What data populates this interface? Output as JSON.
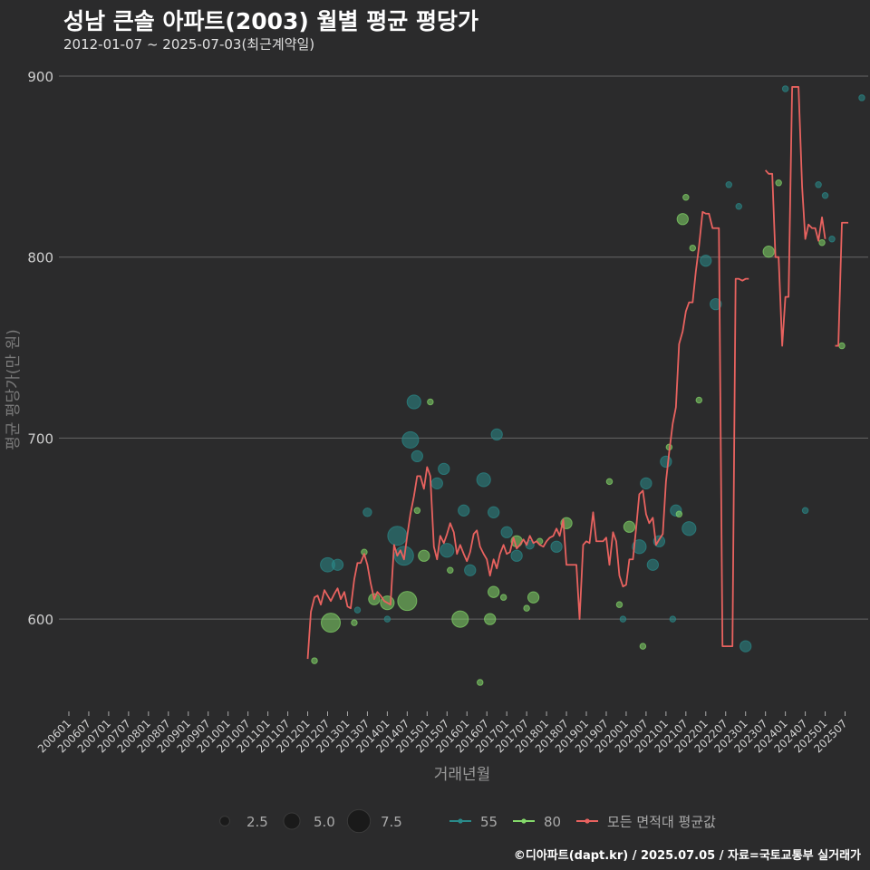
{
  "chart_data": {
    "type": "scatter",
    "title": "성남 큰솔 아파트(2003) 월별 평균 평당가",
    "subtitle": "2012-01-07 ~ 2025-07-03(최근계약일)",
    "xlabel": "거래년월",
    "ylabel": "평균 평당가(만 원)",
    "ylim": [
      549,
      912
    ],
    "yticks": [
      600,
      700,
      800,
      900
    ],
    "x_ticks": [
      "200601",
      "200607",
      "200701",
      "200707",
      "200801",
      "200807",
      "200901",
      "200907",
      "201001",
      "201007",
      "201101",
      "201107",
      "201201",
      "201207",
      "201301",
      "201307",
      "201401",
      "201407",
      "201501",
      "201507",
      "201601",
      "201607",
      "201701",
      "201707",
      "201801",
      "201807",
      "201901",
      "201907",
      "202001",
      "202007",
      "202101",
      "202107",
      "202201",
      "202207",
      "202301",
      "202307",
      "202401",
      "202407",
      "202501",
      "202507"
    ],
    "size_legend": [
      {
        "label": "2.5",
        "value": 2.5
      },
      {
        "label": "5.0",
        "value": 5.0
      },
      {
        "label": "7.5",
        "value": 7.5
      }
    ],
    "series_legend": [
      {
        "label": "55",
        "color": "#2a8a8a",
        "kind": "dot"
      },
      {
        "label": "80",
        "color": "#84d96a",
        "kind": "dot"
      },
      {
        "label": "모든 면적대 평균값",
        "color": "#e8625f",
        "kind": "line"
      }
    ],
    "series": [
      {
        "name": "55",
        "color": "#2a8a8a",
        "points": [
          [
            2012.5,
            630,
            4.2
          ],
          [
            2012.75,
            630,
            3
          ],
          [
            2013.5,
            659,
            2
          ],
          [
            2013.25,
            605,
            1
          ],
          [
            2014.0,
            600,
            1
          ],
          [
            2014.25,
            646,
            6
          ],
          [
            2014.42,
            635,
            6
          ],
          [
            2014.58,
            699,
            5
          ],
          [
            2014.67,
            720,
            4
          ],
          [
            2014.75,
            690,
            3
          ],
          [
            2015.25,
            675,
            3
          ],
          [
            2015.42,
            683,
            3
          ],
          [
            2015.5,
            638,
            4
          ],
          [
            2015.92,
            660,
            3
          ],
          [
            2016.08,
            627,
            3
          ],
          [
            2016.42,
            677,
            4
          ],
          [
            2016.67,
            659,
            3
          ],
          [
            2016.75,
            702,
            3
          ],
          [
            2017.0,
            648,
            3
          ],
          [
            2017.25,
            635,
            3
          ],
          [
            2017.58,
            641,
            2
          ],
          [
            2018.25,
            640,
            3
          ],
          [
            2019.92,
            600,
            1
          ],
          [
            2020.33,
            640,
            4
          ],
          [
            2020.5,
            675,
            3
          ],
          [
            2020.67,
            630,
            3
          ],
          [
            2020.83,
            643,
            3
          ],
          [
            2021.0,
            687,
            3
          ],
          [
            2021.17,
            600,
            1
          ],
          [
            2021.25,
            660,
            3
          ],
          [
            2021.58,
            650,
            4
          ],
          [
            2022.0,
            798,
            3
          ],
          [
            2022.25,
            774,
            3
          ],
          [
            2022.58,
            840,
            1
          ],
          [
            2022.83,
            828,
            1
          ],
          [
            2023.0,
            585,
            3
          ],
          [
            2024.0,
            893,
            1
          ],
          [
            2024.5,
            660,
            1
          ],
          [
            2024.83,
            840,
            1
          ],
          [
            2025.0,
            834,
            1
          ],
          [
            2025.17,
            810,
            1
          ],
          [
            2025.92,
            888,
            1
          ]
        ]
      },
      {
        "name": "80",
        "color": "#84d96a",
        "points": [
          [
            2012.17,
            577,
            1
          ],
          [
            2012.58,
            598,
            6
          ],
          [
            2013.17,
            598,
            1
          ],
          [
            2013.42,
            637,
            1
          ],
          [
            2013.67,
            611,
            3
          ],
          [
            2014.0,
            609,
            4
          ],
          [
            2014.5,
            610,
            6
          ],
          [
            2014.75,
            660,
            1
          ],
          [
            2014.92,
            635,
            3
          ],
          [
            2015.08,
            720,
            1
          ],
          [
            2015.58,
            627,
            1
          ],
          [
            2015.83,
            600,
            5
          ],
          [
            2016.33,
            565,
            1
          ],
          [
            2016.58,
            600,
            3
          ],
          [
            2016.67,
            615,
            3
          ],
          [
            2016.92,
            612,
            1
          ],
          [
            2017.25,
            643,
            3
          ],
          [
            2017.5,
            606,
            1
          ],
          [
            2017.67,
            612,
            3
          ],
          [
            2017.83,
            643,
            1
          ],
          [
            2018.5,
            653,
            3
          ],
          [
            2019.58,
            676,
            1
          ],
          [
            2019.83,
            608,
            1
          ],
          [
            2020.08,
            651,
            3
          ],
          [
            2020.42,
            585,
            1
          ],
          [
            2021.08,
            695,
            1
          ],
          [
            2021.33,
            658,
            1
          ],
          [
            2021.5,
            833,
            1
          ],
          [
            2021.67,
            805,
            1
          ],
          [
            2021.83,
            721,
            1
          ],
          [
            2021.42,
            821,
            3
          ],
          [
            2023.58,
            803,
            3
          ],
          [
            2023.83,
            841,
            1
          ],
          [
            2024.92,
            808,
            1
          ],
          [
            2025.42,
            751,
            1
          ]
        ]
      },
      {
        "name": "모든 면적대 평균값",
        "color": "#e8625f",
        "kind": "line",
        "points": [
          [
            2012.0,
            578
          ],
          [
            2012.08,
            604
          ],
          [
            2012.17,
            612
          ],
          [
            2012.25,
            613
          ],
          [
            2012.33,
            608
          ],
          [
            2012.42,
            616
          ],
          [
            2012.5,
            613
          ],
          [
            2012.58,
            610
          ],
          [
            2012.67,
            614
          ],
          [
            2012.75,
            617
          ],
          [
            2012.83,
            611
          ],
          [
            2012.92,
            615
          ],
          [
            2013.0,
            607
          ],
          [
            2013.08,
            606
          ],
          [
            2013.17,
            622
          ],
          [
            2013.25,
            631
          ],
          [
            2013.33,
            631
          ],
          [
            2013.42,
            636
          ],
          [
            2013.5,
            630
          ],
          [
            2013.58,
            620
          ],
          [
            2013.67,
            611
          ],
          [
            2013.75,
            615
          ],
          [
            2013.83,
            613
          ],
          [
            2013.92,
            610
          ],
          [
            2014.0,
            609
          ],
          [
            2014.08,
            608
          ],
          [
            2014.17,
            641
          ],
          [
            2014.25,
            635
          ],
          [
            2014.33,
            638
          ],
          [
            2014.42,
            633
          ],
          [
            2014.5,
            646
          ],
          [
            2014.58,
            658
          ],
          [
            2014.67,
            668
          ],
          [
            2014.75,
            679
          ],
          [
            2014.83,
            679
          ],
          [
            2014.92,
            672
          ],
          [
            2015.0,
            684
          ],
          [
            2015.08,
            679
          ],
          [
            2015.17,
            640
          ],
          [
            2015.25,
            633
          ],
          [
            2015.33,
            646
          ],
          [
            2015.42,
            642
          ],
          [
            2015.5,
            647
          ],
          [
            2015.58,
            653
          ],
          [
            2015.67,
            648
          ],
          [
            2015.75,
            636
          ],
          [
            2015.83,
            641
          ],
          [
            2015.92,
            636
          ],
          [
            2016.0,
            632
          ],
          [
            2016.08,
            637
          ],
          [
            2016.17,
            647
          ],
          [
            2016.25,
            649
          ],
          [
            2016.33,
            640
          ],
          [
            2016.42,
            636
          ],
          [
            2016.5,
            633
          ],
          [
            2016.58,
            624
          ],
          [
            2016.67,
            633
          ],
          [
            2016.75,
            628
          ],
          [
            2016.83,
            636
          ],
          [
            2016.92,
            641
          ],
          [
            2017.0,
            636
          ],
          [
            2017.08,
            637
          ],
          [
            2017.17,
            645
          ],
          [
            2017.25,
            639
          ],
          [
            2017.33,
            641
          ],
          [
            2017.42,
            644
          ],
          [
            2017.5,
            641
          ],
          [
            2017.58,
            646
          ],
          [
            2017.67,
            642
          ],
          [
            2017.75,
            643
          ],
          [
            2017.83,
            641
          ],
          [
            2017.92,
            640
          ],
          [
            2018.0,
            643
          ],
          [
            2018.08,
            645
          ],
          [
            2018.17,
            646
          ],
          [
            2018.25,
            650
          ],
          [
            2018.33,
            646
          ],
          [
            2018.42,
            655
          ],
          [
            2018.5,
            630
          ],
          [
            2018.58,
            630
          ],
          [
            2018.67,
            630
          ],
          [
            2018.75,
            630
          ],
          [
            2018.83,
            600
          ],
          [
            2018.92,
            641
          ],
          [
            2019.0,
            643
          ],
          [
            2019.08,
            642
          ],
          [
            2019.17,
            659
          ],
          [
            2019.25,
            643
          ],
          [
            2019.33,
            643
          ],
          [
            2019.42,
            643
          ],
          [
            2019.5,
            645
          ],
          [
            2019.58,
            630
          ],
          [
            2019.67,
            648
          ],
          [
            2019.75,
            643
          ],
          [
            2019.83,
            624
          ],
          [
            2019.92,
            618
          ],
          [
            2020.0,
            619
          ],
          [
            2020.08,
            633
          ],
          [
            2020.17,
            633
          ],
          [
            2020.25,
            650
          ],
          [
            2020.33,
            669
          ],
          [
            2020.42,
            671
          ],
          [
            2020.5,
            658
          ],
          [
            2020.58,
            653
          ],
          [
            2020.67,
            656
          ],
          [
            2020.75,
            641
          ],
          [
            2020.83,
            644
          ],
          [
            2020.92,
            647
          ],
          [
            2021.0,
            676
          ],
          [
            2021.08,
            692
          ],
          [
            2021.17,
            708
          ],
          [
            2021.25,
            717
          ],
          [
            2021.33,
            752
          ],
          [
            2021.42,
            759
          ],
          [
            2021.5,
            770
          ],
          [
            2021.58,
            775
          ],
          [
            2021.67,
            775
          ],
          [
            2021.75,
            792
          ],
          [
            2021.83,
            806
          ],
          [
            2021.92,
            825
          ],
          [
            2022.0,
            824
          ],
          [
            2022.08,
            824
          ],
          [
            2022.17,
            816
          ],
          [
            2022.25,
            816
          ],
          [
            2022.33,
            816
          ],
          [
            2022.42,
            585
          ],
          [
            2022.5,
            585
          ],
          [
            2022.58,
            585
          ],
          [
            2022.67,
            585
          ],
          [
            2022.75,
            788
          ],
          [
            2022.83,
            788
          ],
          [
            2022.92,
            787
          ],
          [
            2023.0,
            788
          ],
          [
            2023.08,
            788
          ],
          null,
          [
            2023.5,
            848
          ],
          [
            2023.58,
            846
          ],
          [
            2023.67,
            846
          ],
          [
            2023.75,
            800
          ],
          [
            2023.83,
            800
          ],
          [
            2023.92,
            751
          ],
          [
            2024.0,
            778
          ],
          [
            2024.08,
            778
          ],
          [
            2024.17,
            894
          ],
          [
            2024.25,
            894
          ],
          [
            2024.33,
            894
          ],
          [
            2024.42,
            839
          ],
          [
            2024.5,
            810
          ],
          [
            2024.58,
            818
          ],
          [
            2024.67,
            816
          ],
          [
            2024.75,
            816
          ],
          [
            2024.83,
            809
          ],
          [
            2024.92,
            822
          ],
          [
            2025.0,
            810
          ],
          null,
          [
            2025.25,
            751
          ],
          [
            2025.33,
            751
          ],
          [
            2025.42,
            819
          ],
          [
            2025.5,
            819
          ],
          [
            2025.58,
            819
          ]
        ]
      }
    ]
  },
  "caption": "©디아파트(dapt.kr) / 2025.07.05 / 자료=국토교통부 실거래가"
}
